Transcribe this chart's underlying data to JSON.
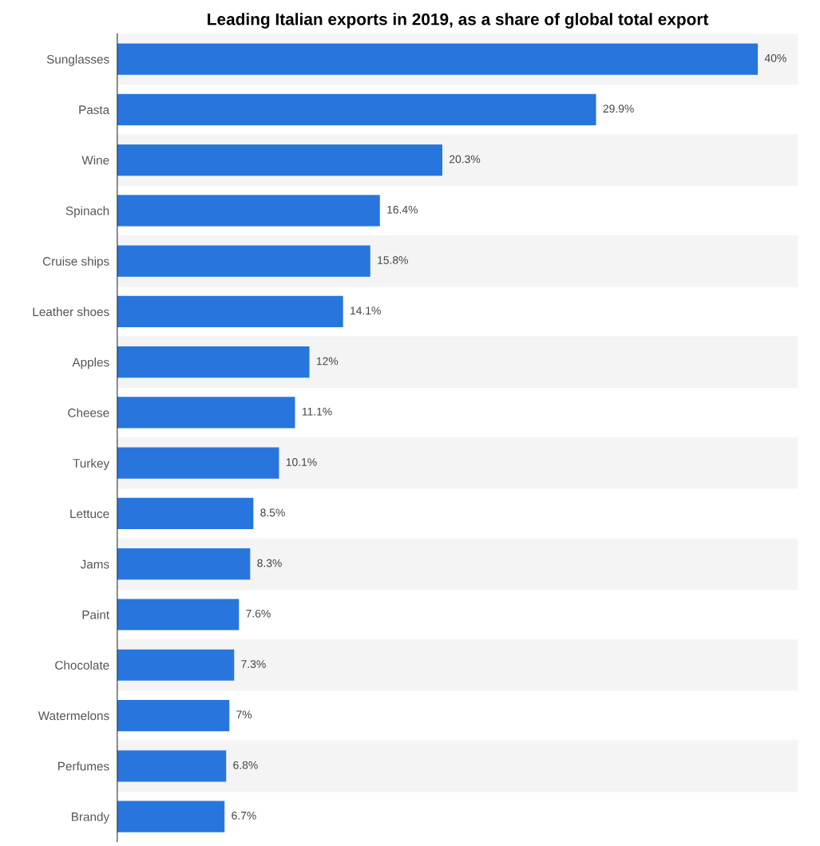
{
  "chart_data": {
    "type": "bar",
    "orientation": "horizontal",
    "title": "Leading Italian exports in 2019, as a share of global total export",
    "categories": [
      "Sunglasses",
      "Pasta",
      "Wine",
      "Spinach",
      "Cruise ships",
      "Leather shoes",
      "Apples",
      "Cheese",
      "Turkey",
      "Lettuce",
      "Jams",
      "Paint",
      "Chocolate",
      "Watermelons",
      "Perfumes",
      "Brandy"
    ],
    "values": [
      40,
      29.9,
      20.3,
      16.4,
      15.8,
      14.1,
      12,
      11.1,
      10.1,
      8.5,
      8.3,
      7.6,
      7.3,
      7,
      6.8,
      6.7
    ],
    "value_labels": [
      "40%",
      "29.9%",
      "20.3%",
      "16.4%",
      "15.8%",
      "14.1%",
      "12%",
      "11.1%",
      "10.1%",
      "8.5%",
      "8.3%",
      "7.6%",
      "7.3%",
      "7%",
      "6.8%",
      "6.7%"
    ],
    "color": "#2876dd",
    "xlim": [
      0,
      42.5
    ],
    "tick_labels": "y",
    "grid": false,
    "legend": false
  }
}
